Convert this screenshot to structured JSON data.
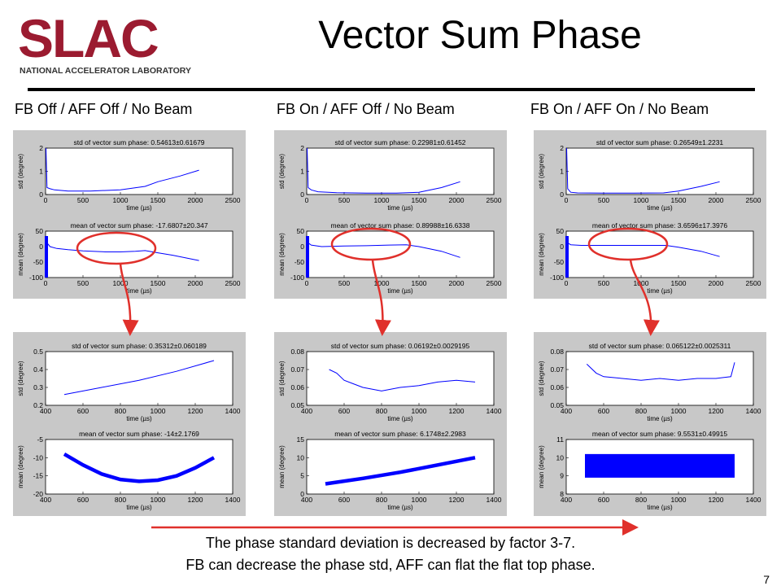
{
  "slide": {
    "logo_text": "SLAC",
    "logo_subtext": "NATIONAL ACCELERATOR LABORATORY",
    "title": "Vector Sum Phase",
    "page_number": "7",
    "caption_line1": "The phase standard deviation is decreased by factor 3-7.",
    "caption_line2": "FB can decrease the phase std, AFF can flat the flat top phase.",
    "columns": [
      "FB Off / AFF Off / No Beam",
      "FB On / AFF Off / No Beam",
      "FB On / AFF On / No Beam"
    ]
  },
  "chart_data": [
    {
      "type": "line",
      "panel": "full-1",
      "subplot": "top",
      "title": "std of vector sum phase: 0.54613±0.61679",
      "xlabel": "time (µs)",
      "ylabel": "std (degree)",
      "xlim": [
        0,
        2500
      ],
      "ylim": [
        0,
        2
      ],
      "xticks": [
        0,
        500,
        1000,
        1500,
        2000,
        2500
      ],
      "yticks": [
        0,
        1,
        2
      ],
      "series": [
        {
          "x": [
            5,
            20,
            60,
            120,
            300,
            600,
            1000,
            1330,
            1500,
            1800,
            2050
          ],
          "y": [
            2,
            0.3,
            0.25,
            0.2,
            0.15,
            0.15,
            0.2,
            0.35,
            0.55,
            0.8,
            1.05
          ]
        }
      ]
    },
    {
      "type": "line",
      "panel": "full-1",
      "subplot": "bottom",
      "title": "mean of vector sum phase: -17.6807±20.347",
      "xlabel": "time (µs)",
      "ylabel": "mean (degree)",
      "xlim": [
        0,
        2500
      ],
      "ylim": [
        -100,
        50
      ],
      "xticks": [
        0,
        500,
        1000,
        1500,
        2000,
        2500
      ],
      "yticks": [
        -100,
        -50,
        0,
        50
      ],
      "series": [
        {
          "x": [
            0,
            5,
            20,
            60,
            150,
            300,
            500,
            800,
            1000,
            1200,
            1330,
            1500,
            1700,
            2050
          ],
          "y": [
            -100,
            10,
            12,
            0,
            -6,
            -10,
            -14,
            -17,
            -17,
            -15,
            -13,
            -20,
            -28,
            -45
          ]
        }
      ]
    },
    {
      "type": "line",
      "panel": "full-2",
      "subplot": "top",
      "title": "std of vector sum phase: 0.22981±0.61452",
      "xlabel": "time (µs)",
      "ylabel": "std (degree)",
      "xlim": [
        0,
        2500
      ],
      "ylim": [
        0,
        2
      ],
      "xticks": [
        0,
        500,
        1000,
        1500,
        2000,
        2500
      ],
      "yticks": [
        0,
        1,
        2
      ],
      "series": [
        {
          "x": [
            5,
            20,
            60,
            150,
            400,
            800,
            1200,
            1500,
            1800,
            2050
          ],
          "y": [
            2,
            0.3,
            0.2,
            0.12,
            0.08,
            0.06,
            0.06,
            0.1,
            0.3,
            0.55
          ]
        }
      ]
    },
    {
      "type": "line",
      "panel": "full-2",
      "subplot": "bottom",
      "title": "mean of vector sum phase: 0.89988±16.6338",
      "xlabel": "time (µs)",
      "ylabel": "mean (degree)",
      "xlim": [
        0,
        2500
      ],
      "ylim": [
        -100,
        50
      ],
      "xticks": [
        0,
        500,
        1000,
        1500,
        2000,
        2500
      ],
      "yticks": [
        -100,
        -50,
        0,
        50
      ],
      "series": [
        {
          "x": [
            0,
            5,
            20,
            60,
            200,
            500,
            800,
            1100,
            1330,
            1500,
            1800,
            2050
          ],
          "y": [
            -100,
            25,
            12,
            5,
            0,
            2,
            3,
            5,
            6,
            0,
            -15,
            -35
          ]
        }
      ]
    },
    {
      "type": "line",
      "panel": "full-3",
      "subplot": "top",
      "title": "std of vector sum phase: 0.26549±1.2231",
      "xlabel": "time (µs)",
      "ylabel": "std (degree)",
      "xlim": [
        0,
        2500
      ],
      "ylim": [
        0,
        2
      ],
      "xticks": [
        0,
        500,
        1000,
        1500,
        2000,
        2500
      ],
      "yticks": [
        0,
        1,
        2
      ],
      "series": [
        {
          "x": [
            5,
            20,
            60,
            150,
            500,
            900,
            1300,
            1500,
            1800,
            2050
          ],
          "y": [
            2,
            0.25,
            0.1,
            0.07,
            0.06,
            0.06,
            0.07,
            0.15,
            0.35,
            0.55
          ]
        }
      ]
    },
    {
      "type": "line",
      "panel": "full-3",
      "subplot": "bottom",
      "title": "mean of vector sum phase: 3.6596±17.3976",
      "xlabel": "time (µs)",
      "ylabel": "mean (degree)",
      "xlim": [
        0,
        2500
      ],
      "ylim": [
        -100,
        50
      ],
      "xticks": [
        0,
        500,
        1000,
        1500,
        2000,
        2500
      ],
      "yticks": [
        -100,
        -50,
        0,
        50
      ],
      "series": [
        {
          "x": [
            0,
            5,
            20,
            60,
            200,
            500,
            800,
            1100,
            1330,
            1500,
            1800,
            2050
          ],
          "y": [
            -100,
            30,
            12,
            6,
            4,
            4,
            4,
            4,
            4,
            -2,
            -15,
            -32
          ]
        }
      ]
    },
    {
      "type": "line",
      "panel": "zoom-1",
      "subplot": "top",
      "title": "std of vector sum phase: 0.35312±0.060189",
      "xlabel": "time (µs)",
      "ylabel": "std (degree)",
      "xlim": [
        400,
        1400
      ],
      "ylim": [
        0.2,
        0.5
      ],
      "xticks": [
        400,
        600,
        800,
        1000,
        1200,
        1400
      ],
      "yticks": [
        0.2,
        0.3,
        0.4,
        0.5
      ],
      "series": [
        {
          "x": [
            500,
            700,
            900,
            1100,
            1300
          ],
          "y": [
            0.26,
            0.3,
            0.34,
            0.39,
            0.45
          ]
        }
      ]
    },
    {
      "type": "line",
      "panel": "zoom-1",
      "subplot": "bottom",
      "title": "mean of vector sum phase: -14±2.1769",
      "xlabel": "time (µs)",
      "ylabel": "mean (degree)",
      "xlim": [
        400,
        1400
      ],
      "ylim": [
        -20,
        -5
      ],
      "xticks": [
        400,
        600,
        800,
        1000,
        1200,
        1400
      ],
      "yticks": [
        -20,
        -15,
        -10,
        -5
      ],
      "series": [
        {
          "x": [
            500,
            600,
            700,
            800,
            900,
            1000,
            1100,
            1200,
            1300
          ],
          "y": [
            -9,
            -12,
            -14.5,
            -16,
            -16.5,
            -16.2,
            -15,
            -12.8,
            -10
          ]
        }
      ]
    },
    {
      "type": "line",
      "panel": "zoom-2",
      "subplot": "top",
      "title": "std of vector sum phase: 0.06192±0.0029195",
      "xlabel": "time (µs)",
      "ylabel": "std (degree)",
      "xlim": [
        400,
        1400
      ],
      "ylim": [
        0.05,
        0.08
      ],
      "xticks": [
        400,
        600,
        800,
        1000,
        1200,
        1400
      ],
      "yticks": [
        0.05,
        0.06,
        0.07,
        0.08
      ],
      "series": [
        {
          "x": [
            520,
            560,
            600,
            650,
            700,
            800,
            900,
            1000,
            1100,
            1200,
            1300
          ],
          "y": [
            0.07,
            0.068,
            0.064,
            0.062,
            0.06,
            0.058,
            0.06,
            0.061,
            0.063,
            0.064,
            0.063
          ]
        }
      ]
    },
    {
      "type": "line",
      "panel": "zoom-2",
      "subplot": "bottom",
      "title": "mean of vector sum phase: 6.1748±2.2983",
      "xlabel": "time (µs)",
      "ylabel": "mean (degree)",
      "xlim": [
        400,
        1400
      ],
      "ylim": [
        0,
        15
      ],
      "xticks": [
        400,
        600,
        800,
        1000,
        1200,
        1400
      ],
      "yticks": [
        0,
        5,
        10,
        15
      ],
      "series": [
        {
          "x": [
            500,
            700,
            900,
            1100,
            1300
          ],
          "y": [
            2.8,
            4.3,
            6,
            8,
            10
          ]
        }
      ]
    },
    {
      "type": "line",
      "panel": "zoom-3",
      "subplot": "top",
      "title": "std of vector sum phase: 0.065122±0.0025311",
      "xlabel": "time (µs)",
      "ylabel": "std (degree)",
      "xlim": [
        400,
        1400
      ],
      "ylim": [
        0.05,
        0.08
      ],
      "xticks": [
        400,
        600,
        800,
        1000,
        1200,
        1400
      ],
      "yticks": [
        0.05,
        0.06,
        0.07,
        0.08
      ],
      "series": [
        {
          "x": [
            510,
            560,
            600,
            700,
            800,
            900,
            1000,
            1100,
            1200,
            1280,
            1300
          ],
          "y": [
            0.073,
            0.068,
            0.066,
            0.065,
            0.064,
            0.065,
            0.064,
            0.065,
            0.065,
            0.066,
            0.074
          ]
        }
      ]
    },
    {
      "type": "area",
      "panel": "zoom-3",
      "subplot": "bottom",
      "title": "mean of vector sum phase: 9.5531±0.49915",
      "xlabel": "time (µs)",
      "ylabel": "mean (degree)",
      "xlim": [
        400,
        1400
      ],
      "ylim": [
        8,
        11
      ],
      "xticks": [
        400,
        600,
        800,
        1000,
        1200,
        1400
      ],
      "yticks": [
        8,
        9,
        10,
        11
      ],
      "series": [
        {
          "x": [
            500,
            1300
          ],
          "y": [
            9.55,
            9.55
          ],
          "band": [
            8.9,
            10.2
          ]
        }
      ]
    }
  ]
}
